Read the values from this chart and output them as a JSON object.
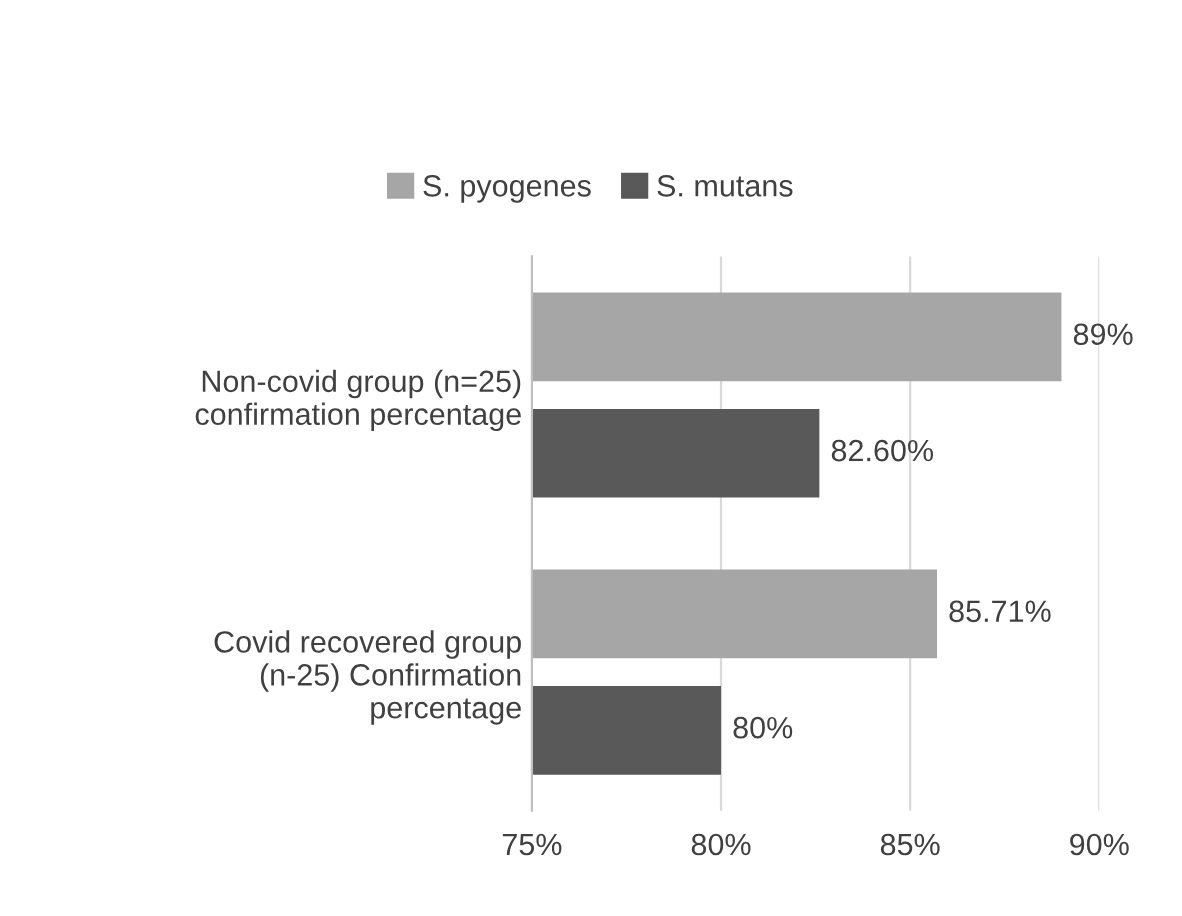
{
  "chart_data": {
    "type": "bar",
    "orientation": "horizontal",
    "categories": [
      "Non-covid group (n=25) confirmation percentage",
      "Covid recovered group (n-25) Confirmation percentage"
    ],
    "series": [
      {
        "name": "S. pyogenes",
        "color": "#a6a6a6",
        "values": [
          89,
          85.71
        ],
        "value_labels": [
          "89%",
          "85.71%"
        ]
      },
      {
        "name": "S. mutans",
        "color": "#595959",
        "values": [
          82.6,
          80
        ],
        "value_labels": [
          "82.60%",
          "80%"
        ]
      }
    ],
    "xlim": [
      75,
      90
    ],
    "xticks": [
      {
        "value": 75,
        "label": "75%"
      },
      {
        "value": 80,
        "label": "80%"
      },
      {
        "value": 85,
        "label": "85%"
      },
      {
        "value": 90,
        "label": "90%"
      }
    ],
    "grid": "x",
    "legend": "top"
  }
}
